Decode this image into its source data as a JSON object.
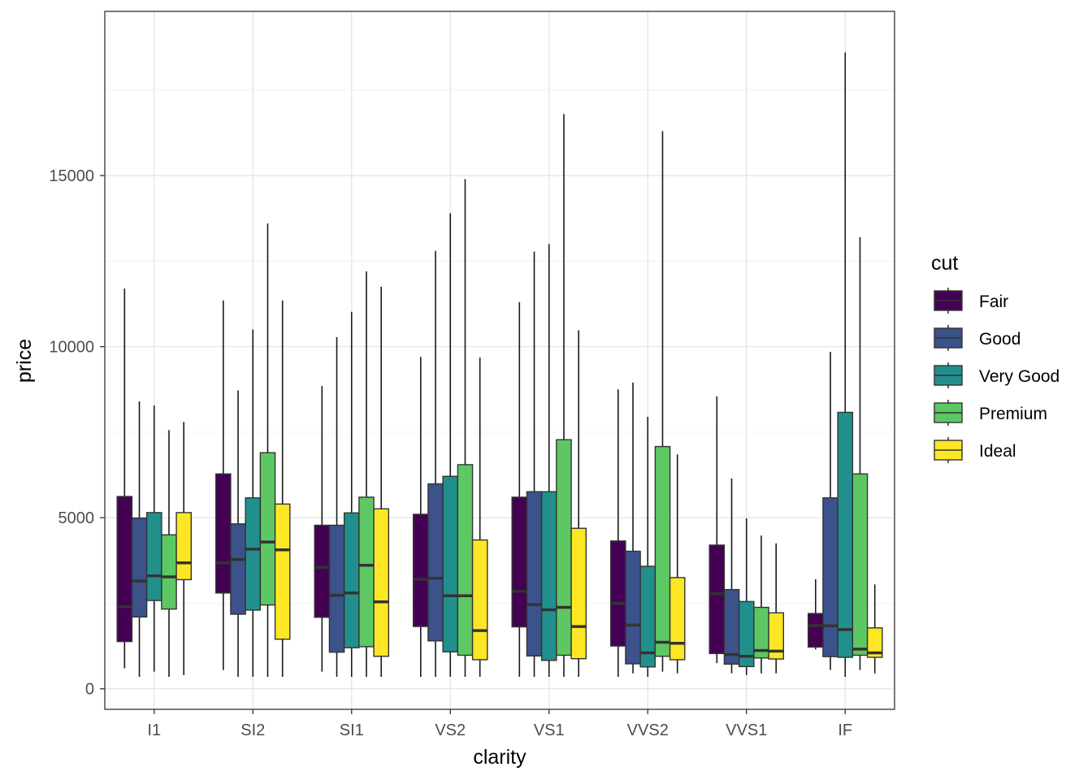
{
  "chart_data": {
    "type": "boxplot",
    "xlabel": "clarity",
    "ylabel": "price",
    "categories": [
      "I1",
      "SI2",
      "SI1",
      "VS2",
      "VS1",
      "VVS2",
      "VVS1",
      "IF"
    ],
    "ylim": [
      -600,
      19800
    ],
    "yticks": [
      0,
      5000,
      10000,
      15000
    ],
    "ytick_labels": [
      "0",
      "5000",
      "10000",
      "15000"
    ],
    "grid": true,
    "legend": {
      "title": "cut",
      "position": "right"
    },
    "series": [
      {
        "name": "Fair",
        "color": "#440154",
        "boxes": [
          {
            "lo": 600,
            "q1": 1380,
            "median": 2400,
            "q3": 5620,
            "hi": 11700
          },
          {
            "lo": 550,
            "q1": 2800,
            "median": 3680,
            "q3": 6280,
            "hi": 11350
          },
          {
            "lo": 500,
            "q1": 2090,
            "median": 3550,
            "q3": 4780,
            "hi": 8850
          },
          {
            "lo": 350,
            "q1": 1820,
            "median": 3200,
            "q3": 5100,
            "hi": 9700
          },
          {
            "lo": 350,
            "q1": 1810,
            "median": 2850,
            "q3": 5600,
            "hi": 11300
          },
          {
            "lo": 350,
            "q1": 1250,
            "median": 2500,
            "q3": 4320,
            "hi": 8750
          },
          {
            "lo": 750,
            "q1": 1030,
            "median": 2780,
            "q3": 4200,
            "hi": 8550
          },
          {
            "lo": 1150,
            "q1": 1220,
            "median": 1850,
            "q3": 2200,
            "hi": 3200
          }
        ]
      },
      {
        "name": "Good",
        "color": "#3b528b",
        "boxes": [
          {
            "lo": 350,
            "q1": 2100,
            "median": 3150,
            "q3": 4990,
            "hi": 8400
          },
          {
            "lo": 350,
            "q1": 2180,
            "median": 3780,
            "q3": 4820,
            "hi": 8720
          },
          {
            "lo": 350,
            "q1": 1070,
            "median": 2730,
            "q3": 4780,
            "hi": 10280
          },
          {
            "lo": 350,
            "q1": 1400,
            "median": 3230,
            "q3": 5990,
            "hi": 12800
          },
          {
            "lo": 350,
            "q1": 960,
            "median": 2460,
            "q3": 5760,
            "hi": 12780
          },
          {
            "lo": 450,
            "q1": 730,
            "median": 1860,
            "q3": 4020,
            "hi": 8950
          },
          {
            "lo": 450,
            "q1": 720,
            "median": 1000,
            "q3": 2900,
            "hi": 6150
          },
          {
            "lo": 550,
            "q1": 940,
            "median": 1840,
            "q3": 5580,
            "hi": 9850
          }
        ]
      },
      {
        "name": "Very Good",
        "color": "#21908d",
        "boxes": [
          {
            "lo": 500,
            "q1": 2580,
            "median": 3300,
            "q3": 5150,
            "hi": 8280
          },
          {
            "lo": 350,
            "q1": 2300,
            "median": 4080,
            "q3": 5580,
            "hi": 10500
          },
          {
            "lo": 350,
            "q1": 1200,
            "median": 2800,
            "q3": 5140,
            "hi": 11020
          },
          {
            "lo": 350,
            "q1": 1080,
            "median": 2720,
            "q3": 6210,
            "hi": 13900
          },
          {
            "lo": 350,
            "q1": 830,
            "median": 2310,
            "q3": 5760,
            "hi": 13000
          },
          {
            "lo": 350,
            "q1": 640,
            "median": 1050,
            "q3": 3580,
            "hi": 7950
          },
          {
            "lo": 400,
            "q1": 650,
            "median": 950,
            "q3": 2550,
            "hi": 4980
          },
          {
            "lo": 350,
            "q1": 920,
            "median": 1730,
            "q3": 8080,
            "hi": 18600
          }
        ]
      },
      {
        "name": "Premium",
        "color": "#5dc863",
        "boxes": [
          {
            "lo": 350,
            "q1": 2330,
            "median": 3270,
            "q3": 4500,
            "hi": 7560
          },
          {
            "lo": 350,
            "q1": 2450,
            "median": 4290,
            "q3": 6900,
            "hi": 13600
          },
          {
            "lo": 350,
            "q1": 1230,
            "median": 3610,
            "q3": 5600,
            "hi": 12200
          },
          {
            "lo": 350,
            "q1": 980,
            "median": 2720,
            "q3": 6550,
            "hi": 14900
          },
          {
            "lo": 350,
            "q1": 980,
            "median": 2380,
            "q3": 7280,
            "hi": 16800
          },
          {
            "lo": 500,
            "q1": 950,
            "median": 1360,
            "q3": 7080,
            "hi": 16300
          },
          {
            "lo": 450,
            "q1": 900,
            "median": 1120,
            "q3": 2380,
            "hi": 4480
          },
          {
            "lo": 550,
            "q1": 980,
            "median": 1160,
            "q3": 6280,
            "hi": 13200
          }
        ]
      },
      {
        "name": "Ideal",
        "color": "#fde725",
        "boxes": [
          {
            "lo": 400,
            "q1": 3190,
            "median": 3680,
            "q3": 5150,
            "hi": 7800
          },
          {
            "lo": 350,
            "q1": 1450,
            "median": 4060,
            "q3": 5400,
            "hi": 11350
          },
          {
            "lo": 350,
            "q1": 950,
            "median": 2540,
            "q3": 5260,
            "hi": 11750
          },
          {
            "lo": 350,
            "q1": 850,
            "median": 1700,
            "q3": 4350,
            "hi": 9680
          },
          {
            "lo": 350,
            "q1": 880,
            "median": 1820,
            "q3": 4690,
            "hi": 10480
          },
          {
            "lo": 450,
            "q1": 850,
            "median": 1330,
            "q3": 3250,
            "hi": 6850
          },
          {
            "lo": 450,
            "q1": 870,
            "median": 1100,
            "q3": 2220,
            "hi": 4250
          },
          {
            "lo": 450,
            "q1": 920,
            "median": 1050,
            "q3": 1780,
            "hi": 3050
          }
        ]
      }
    ]
  }
}
